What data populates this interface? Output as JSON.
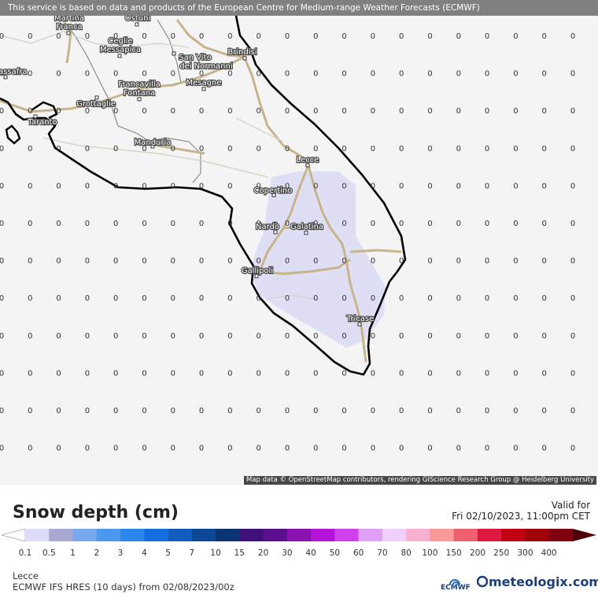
{
  "map": {
    "notice": "This service is based on data and products of the European Centre for Medium-range Weather Forecasts (ECMWF)",
    "attribution": "Map data © OpenStreetMap contributors, rendering GIScience Research Group @ Heidelberg University",
    "grid_value": "0",
    "colors": {
      "background": "#f4f4f4",
      "coast": "#000000",
      "roads": "#c8b48c",
      "snow_area": "#dcdcf4",
      "borders": "#888888"
    },
    "cities": [
      {
        "name": "Martina\nFranca"
      },
      {
        "name": "Ostuni"
      },
      {
        "name": "Ceglie\nMessapica"
      },
      {
        "name": "San Vito\ndei Normanni"
      },
      {
        "name": "Brindisi"
      },
      {
        "name": "Massafra"
      },
      {
        "name": "Francavilla\nFontana"
      },
      {
        "name": "Mesagne"
      },
      {
        "name": "Grottaglie"
      },
      {
        "name": "Taranto"
      },
      {
        "name": "Manduria"
      },
      {
        "name": "Lecce"
      },
      {
        "name": "Copertino"
      },
      {
        "name": "Nardò"
      },
      {
        "name": "Galatina"
      },
      {
        "name": "Gallipoli"
      },
      {
        "name": "Tricase"
      }
    ]
  },
  "legend": {
    "title": "Snow depth (cm)",
    "valid_label": "Valid for",
    "valid_date": "Fri 02/10/2023, 11:00pm CET",
    "scale": [
      {
        "label": "0.1",
        "color": "#dcdcf8"
      },
      {
        "label": "0.5",
        "color": "#a8a8d0"
      },
      {
        "label": "1",
        "color": "#78a8f0"
      },
      {
        "label": "2",
        "color": "#4c98ee"
      },
      {
        "label": "3",
        "color": "#2a86ec"
      },
      {
        "label": "4",
        "color": "#1470e0"
      },
      {
        "label": "5",
        "color": "#125cc0"
      },
      {
        "label": "7",
        "color": "#0d4896"
      },
      {
        "label": "10",
        "color": "#0a3570"
      },
      {
        "label": "15",
        "color": "#40107a"
      },
      {
        "label": "20",
        "color": "#5c1090"
      },
      {
        "label": "30",
        "color": "#8a10b0"
      },
      {
        "label": "40",
        "color": "#b414d8"
      },
      {
        "label": "50",
        "color": "#d040ec"
      },
      {
        "label": "60",
        "color": "#e0a0f4"
      },
      {
        "label": "70",
        "color": "#f0d0fa"
      },
      {
        "label": "80",
        "color": "#f8b0d0"
      },
      {
        "label": "100",
        "color": "#f89898"
      },
      {
        "label": "150",
        "color": "#f06070"
      },
      {
        "label": "200",
        "color": "#e01840"
      },
      {
        "label": "250",
        "color": "#c00010"
      },
      {
        "label": "300",
        "color": "#a00008"
      },
      {
        "label": "400",
        "color": "#800010"
      }
    ],
    "end_color": "#500008",
    "start_color": "#ffffff",
    "place": "Lecce",
    "model": "ECMWF IFS HRES (10 days) from 02/08/2023/00z",
    "ecmwf_logo_text": "ECMWF",
    "brand": "meteologix.com"
  }
}
